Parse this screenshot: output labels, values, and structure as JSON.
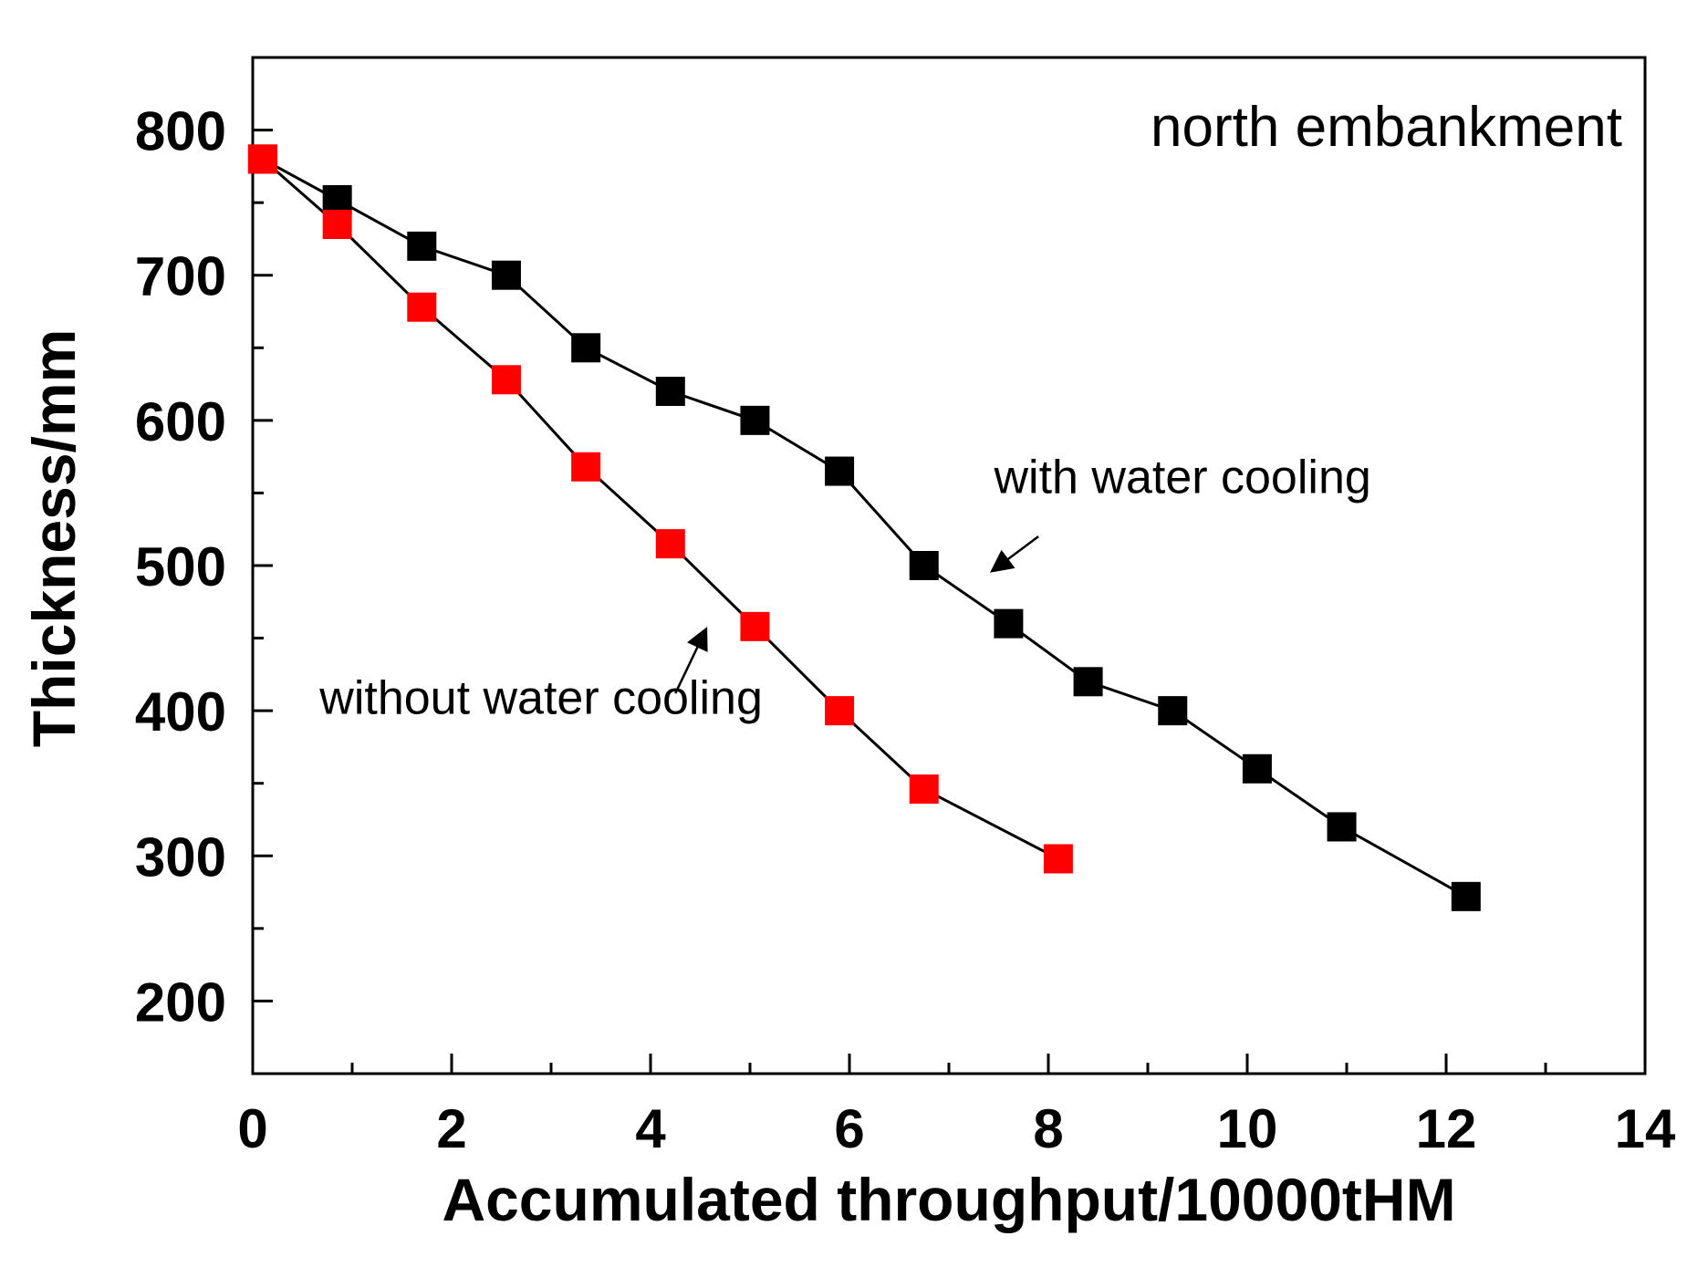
{
  "chart_data": {
    "type": "line",
    "title": "north embankment",
    "xlabel": "Accumulated throughput/10000tHM",
    "ylabel": "Thickness/mm",
    "xlim": [
      0,
      14
    ],
    "ylim": [
      150,
      850
    ],
    "x_ticks": [
      0,
      2,
      4,
      6,
      8,
      10,
      12,
      14
    ],
    "y_ticks": [
      200,
      300,
      400,
      500,
      600,
      700,
      800
    ],
    "grid": false,
    "series": [
      {
        "name": "with water cooling",
        "color": "#000000",
        "marker": "square",
        "x": [
          0.1,
          0.85,
          1.7,
          2.55,
          3.35,
          4.2,
          5.05,
          5.9,
          6.75,
          7.6,
          8.4,
          9.25,
          10.1,
          10.95,
          12.2
        ],
        "y": [
          780,
          752,
          720,
          700,
          650,
          620,
          600,
          565,
          500,
          460,
          420,
          400,
          360,
          320,
          272
        ]
      },
      {
        "name": "without water cooling",
        "color": "#ff0000",
        "marker": "square",
        "x": [
          0.1,
          0.85,
          1.7,
          2.55,
          3.35,
          4.2,
          5.05,
          5.9,
          6.75,
          8.1
        ],
        "y": [
          780,
          735,
          678,
          628,
          568,
          515,
          458,
          400,
          346,
          298
        ]
      }
    ],
    "annotations": [
      {
        "text": "with water cooling",
        "series": 0,
        "arrow_from": [
          7.9,
          520
        ],
        "arrow_to": [
          7.45,
          497
        ],
        "text_at": [
          9.35,
          550
        ]
      },
      {
        "text": "without water cooling",
        "series": 1,
        "arrow_from": [
          4.25,
          412
        ],
        "arrow_to": [
          4.55,
          455
        ],
        "text_at": [
          2.9,
          398
        ]
      }
    ]
  }
}
